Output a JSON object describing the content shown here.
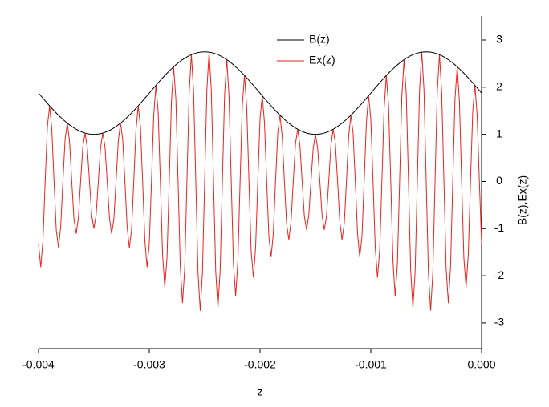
{
  "chart_data": {
    "type": "line",
    "xlabel": "z",
    "ylabel": "B(z),Ex(z)",
    "xlim": [
      -0.004,
      0
    ],
    "ylim": [
      -3.5,
      3.5
    ],
    "xticks": [
      -0.004,
      -0.003,
      -0.002,
      -0.001,
      {
        "value": 0,
        "label": "0.000"
      }
    ],
    "yticks": [
      -3,
      -2,
      -1,
      0,
      1,
      2,
      3
    ],
    "legend": "upper center",
    "x": [
      -0.004,
      -0.00398,
      -0.00396,
      -0.00394,
      -0.00392,
      -0.0039,
      -0.00388,
      -0.00386,
      -0.00384,
      -0.00382,
      -0.0038,
      -0.00378,
      -0.00376,
      -0.00374,
      -0.00372,
      -0.0037,
      -0.00368,
      -0.00366,
      -0.00364,
      -0.00362,
      -0.0036,
      -0.00358,
      -0.00356,
      -0.00354,
      -0.00352,
      -0.0035,
      -0.00348,
      -0.00346,
      -0.00344,
      -0.00342,
      -0.0034,
      -0.00338,
      -0.00336,
      -0.00334,
      -0.00332,
      -0.0033,
      -0.00328,
      -0.00326,
      -0.00324,
      -0.00322,
      -0.0032,
      -0.00318,
      -0.00316,
      -0.00314,
      -0.00312,
      -0.0031,
      -0.00308,
      -0.00306,
      -0.00304,
      -0.00302,
      -0.003,
      -0.00298,
      -0.00296,
      -0.00294,
      -0.00292,
      -0.0029,
      -0.00288,
      -0.00286,
      -0.00284,
      -0.00282,
      -0.0028,
      -0.00278,
      -0.00276,
      -0.00274,
      -0.00272,
      -0.0027,
      -0.00268,
      -0.00266,
      -0.00264,
      -0.00262,
      -0.0026,
      -0.00258,
      -0.00256,
      -0.00254,
      -0.00252,
      -0.0025,
      -0.00248,
      -0.00246,
      -0.00244,
      -0.00242,
      -0.0024,
      -0.00238,
      -0.00236,
      -0.00234,
      -0.00232,
      -0.0023,
      -0.00228,
      -0.00226,
      -0.00224,
      -0.00222,
      -0.0022,
      -0.00218,
      -0.00216,
      -0.00214,
      -0.00212,
      -0.0021,
      -0.00208,
      -0.00206,
      -0.00204,
      -0.00202,
      -0.002,
      -0.00198,
      -0.00196,
      -0.00194,
      -0.00192,
      -0.0019,
      -0.00188,
      -0.00186,
      -0.00184,
      -0.00182,
      -0.0018,
      -0.00178,
      -0.00176,
      -0.00174,
      -0.00172,
      -0.0017,
      -0.00168,
      -0.00166,
      -0.00164,
      -0.00162,
      -0.0016,
      -0.00158,
      -0.00156,
      -0.00154,
      -0.00152,
      -0.0015,
      -0.00148,
      -0.00146,
      -0.00144,
      -0.00142,
      -0.0014,
      -0.00138,
      -0.00136,
      -0.00134,
      -0.00132,
      -0.0013,
      -0.00128,
      -0.00126,
      -0.00124,
      -0.00122,
      -0.0012,
      -0.00118,
      -0.00116,
      -0.00114,
      -0.00112,
      -0.0011,
      -0.00108,
      -0.00106,
      -0.00104,
      -0.00102,
      -0.001,
      -0.00098,
      -0.00096,
      -0.00094,
      -0.00092,
      -0.0009,
      -0.00088,
      -0.00086,
      -0.00084,
      -0.00082,
      -0.0008,
      -0.00078,
      -0.00076,
      -0.00074,
      -0.00072,
      -0.0007,
      -0.00068,
      -0.00066,
      -0.00064,
      -0.00062,
      -0.0006,
      -0.00058,
      -0.00056,
      -0.00054,
      -0.00052,
      -0.0005,
      -0.00048,
      -0.00046,
      -0.00044,
      -0.00042,
      -0.0004,
      -0.00038,
      -0.00036,
      -0.00034,
      -0.00032,
      -0.0003,
      -0.00028,
      -0.00026,
      -0.00024,
      -0.00022,
      -0.0002,
      -0.00018,
      -0.00016,
      -0.00014,
      -0.00012,
      -0.0001,
      -8e-05,
      -6e-05,
      -4e-05,
      -2e-05,
      0
    ],
    "series": [
      {
        "name": "B(z)",
        "color": "#000000",
        "values": [
          1.875,
          1.82,
          1.765,
          1.711,
          1.657,
          1.605,
          1.553,
          1.502,
          1.453,
          1.406,
          1.361,
          1.317,
          1.276,
          1.237,
          1.201,
          1.167,
          1.136,
          1.108,
          1.083,
          1.061,
          1.043,
          1.027,
          1.015,
          1.007,
          1.002,
          1.0,
          1.002,
          1.007,
          1.015,
          1.027,
          1.043,
          1.061,
          1.083,
          1.108,
          1.136,
          1.167,
          1.201,
          1.237,
          1.276,
          1.317,
          1.361,
          1.406,
          1.453,
          1.502,
          1.553,
          1.605,
          1.657,
          1.711,
          1.765,
          1.82,
          1.875,
          1.93,
          1.985,
          2.039,
          2.093,
          2.145,
          2.197,
          2.248,
          2.297,
          2.344,
          2.389,
          2.433,
          2.474,
          2.513,
          2.549,
          2.583,
          2.614,
          2.642,
          2.667,
          2.689,
          2.707,
          2.723,
          2.735,
          2.743,
          2.748,
          2.75,
          2.748,
          2.743,
          2.735,
          2.723,
          2.707,
          2.689,
          2.667,
          2.642,
          2.614,
          2.583,
          2.549,
          2.513,
          2.474,
          2.433,
          2.389,
          2.344,
          2.297,
          2.248,
          2.197,
          2.145,
          2.093,
          2.039,
          1.985,
          1.93,
          1.875,
          1.82,
          1.765,
          1.711,
          1.657,
          1.605,
          1.553,
          1.502,
          1.453,
          1.406,
          1.361,
          1.317,
          1.276,
          1.237,
          1.201,
          1.167,
          1.136,
          1.108,
          1.083,
          1.061,
          1.043,
          1.027,
          1.015,
          1.007,
          1.002,
          1.0,
          1.002,
          1.007,
          1.015,
          1.027,
          1.043,
          1.061,
          1.083,
          1.108,
          1.136,
          1.167,
          1.201,
          1.237,
          1.276,
          1.317,
          1.361,
          1.406,
          1.453,
          1.502,
          1.553,
          1.605,
          1.657,
          1.711,
          1.765,
          1.82,
          1.875,
          1.93,
          1.985,
          2.039,
          2.093,
          2.145,
          2.197,
          2.248,
          2.297,
          2.344,
          2.389,
          2.433,
          2.474,
          2.513,
          2.549,
          2.583,
          2.614,
          2.642,
          2.667,
          2.689,
          2.707,
          2.723,
          2.735,
          2.743,
          2.748,
          2.75,
          2.748,
          2.743,
          2.735,
          2.723,
          2.707,
          2.689,
          2.667,
          2.642,
          2.614,
          2.583,
          2.549,
          2.513,
          2.474,
          2.433,
          2.389,
          2.344,
          2.297,
          2.248,
          2.197,
          2.145,
          2.093,
          2.039,
          1.985,
          1.93,
          1.875
        ]
      },
      {
        "name": "Ex(z)",
        "color": "#e8231f",
        "values": [
          -1.326,
          -1.82,
          -1.248,
          0,
          1.172,
          1.605,
          1.098,
          0,
          -1.027,
          -1.406,
          -0.962,
          0,
          0.902,
          1.237,
          0.849,
          0,
          -0.803,
          -1.108,
          -0.766,
          0,
          0.738,
          1.027,
          0.718,
          0,
          -0.709,
          -1.0,
          -0.709,
          0,
          0.718,
          1.027,
          0.738,
          0,
          -0.766,
          -1.108,
          -0.803,
          0,
          0.849,
          1.237,
          0.902,
          0,
          -0.962,
          -1.406,
          -1.027,
          0,
          1.098,
          1.605,
          1.172,
          0,
          -1.248,
          -1.82,
          -1.326,
          0,
          1.404,
          2.039,
          1.48,
          0,
          -1.553,
          -2.248,
          -1.624,
          0,
          1.689,
          2.433,
          1.749,
          0,
          -1.802,
          -2.583,
          -1.848,
          0,
          1.886,
          2.689,
          1.914,
          0,
          -1.934,
          -2.743,
          -1.943,
          0,
          1.943,
          2.743,
          1.934,
          0,
          -1.914,
          -2.689,
          -1.886,
          0,
          1.848,
          2.583,
          1.802,
          0,
          -1.749,
          -2.433,
          -1.689,
          0,
          1.624,
          2.248,
          1.553,
          0,
          -1.48,
          -2.039,
          -1.404,
          0,
          1.326,
          1.82,
          1.248,
          0,
          -1.172,
          -1.605,
          -1.098,
          0,
          1.027,
          1.406,
          0.962,
          0,
          -0.902,
          -1.237,
          -0.849,
          0,
          0.803,
          1.108,
          0.766,
          0,
          -0.738,
          -1.027,
          -0.718,
          0,
          0.709,
          1.0,
          0.709,
          0,
          -0.718,
          -1.027,
          -0.738,
          0,
          0.766,
          1.108,
          0.803,
          0,
          -0.849,
          -1.237,
          -0.902,
          0,
          0.962,
          1.406,
          1.027,
          0,
          -1.098,
          -1.605,
          -1.172,
          0,
          1.248,
          1.82,
          1.326,
          0,
          -1.404,
          -2.039,
          -1.48,
          0,
          1.553,
          2.248,
          1.624,
          0,
          -1.689,
          -2.433,
          -1.749,
          0,
          1.802,
          2.583,
          1.848,
          0,
          -1.886,
          -2.689,
          -1.914,
          0,
          1.934,
          2.743,
          1.943,
          0,
          -1.943,
          -2.743,
          -1.934,
          0,
          1.914,
          2.689,
          1.886,
          0,
          -1.848,
          -2.583,
          -1.802,
          0,
          1.749,
          2.433,
          1.689,
          0,
          -1.624,
          -2.248,
          -1.553,
          0,
          1.48,
          2.039,
          1.404,
          0,
          -1.326
        ]
      }
    ]
  }
}
